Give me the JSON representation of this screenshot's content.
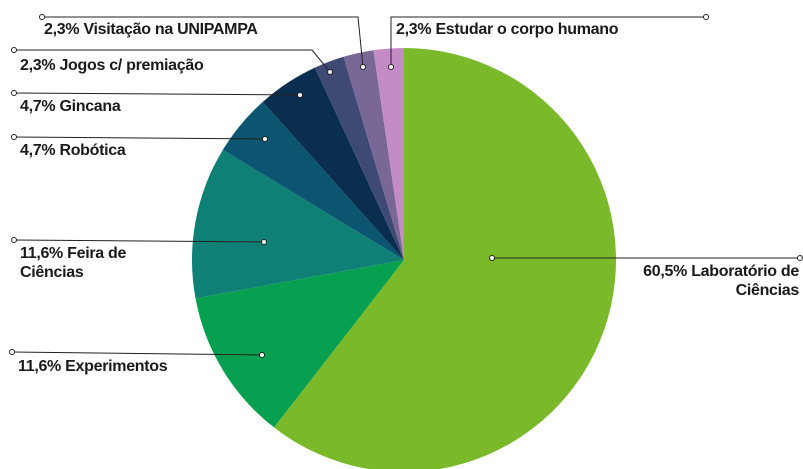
{
  "chart_data": {
    "type": "pie",
    "categories": [
      "Laboratório de Ciências",
      "Experimentos",
      "Feira de Ciências",
      "Robótica",
      "Gincana",
      "Jogos c/ premiação",
      "Visitação na UNIPAMPA",
      "Estudar o corpo humano"
    ],
    "values": [
      60.5,
      11.6,
      11.6,
      4.7,
      4.7,
      2.3,
      2.3,
      2.3
    ],
    "value_labels": [
      "60,5%",
      "11,6%",
      "11,6%",
      "4,7%",
      "4,7%",
      "2,3%",
      "2,3%",
      "2,3%"
    ],
    "colors": [
      "#7aba2a",
      "#07a051",
      "#0f8075",
      "#0b5570",
      "#0a2e4e",
      "#3e4a74",
      "#796796",
      "#c48cc6"
    ]
  }
}
